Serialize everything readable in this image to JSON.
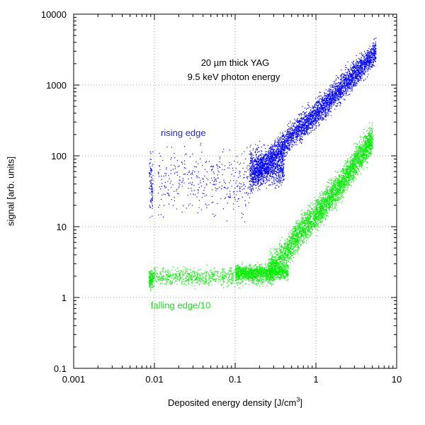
{
  "chart_data": {
    "type": "scatter",
    "title_lines": [
      "20 µm thick YAG",
      "9.5 keV photon energy"
    ],
    "xlabel": "Deposited energy density [J/cm",
    "xlabel_sup": "3",
    "xlabel_end": "]",
    "ylabel": "signal [arb. units]",
    "x_scale": "log",
    "y_scale": "log",
    "xlim": [
      0.001,
      10
    ],
    "ylim": [
      0.1,
      10000
    ],
    "x_ticks": [
      {
        "value": 0.001,
        "label": "0.001"
      },
      {
        "value": 0.01,
        "label": "0.01"
      },
      {
        "value": 0.1,
        "label": "0.1"
      },
      {
        "value": 1,
        "label": "1"
      },
      {
        "value": 10,
        "label": "10"
      }
    ],
    "y_ticks": [
      {
        "value": 0.1,
        "label": "0.1"
      },
      {
        "value": 1,
        "label": "1"
      },
      {
        "value": 10,
        "label": "10"
      },
      {
        "value": 100,
        "label": "100"
      },
      {
        "value": 1000,
        "label": "1000"
      },
      {
        "value": 10000,
        "label": "10000"
      }
    ],
    "grid": true,
    "series": [
      {
        "name": "rising edge",
        "color": "#0000ff",
        "label_anchor": {
          "x": 0.012,
          "y": 190
        },
        "clusters": [
          {
            "x_range": [
              0.0085,
              0.0095
            ],
            "y_center": 40,
            "y_spread_decades": 0.4,
            "count": 90
          },
          {
            "x_range": [
              0.011,
              0.15
            ],
            "y_center": 45,
            "y_spread_decades": 0.45,
            "count": 380
          },
          {
            "x_range": [
              0.15,
              0.4
            ],
            "y_center": 70,
            "y_spread_decades": 0.25,
            "count": 900
          }
        ],
        "trend": [
          {
            "x": 0.15,
            "y": 45
          },
          {
            "x": 0.3,
            "y": 100
          },
          {
            "x": 0.5,
            "y": 200
          },
          {
            "x": 1.0,
            "y": 400
          },
          {
            "x": 2.0,
            "y": 900
          },
          {
            "x": 4.0,
            "y": 2000
          },
          {
            "x": 5.5,
            "y": 3000
          }
        ],
        "trend_spread_decades": 0.18,
        "trend_count": 3800
      },
      {
        "name": "falling edge/10",
        "color": "#00ee00",
        "label_anchor": {
          "x": 0.009,
          "y": 0.7
        },
        "clusters": [
          {
            "x_range": [
              0.0085,
              0.0095
            ],
            "y_center": 1.8,
            "y_spread_decades": 0.12,
            "count": 140
          },
          {
            "x_range": [
              0.009,
              0.3
            ],
            "y_center": 2.0,
            "y_spread_decades": 0.12,
            "count": 900
          },
          {
            "x_range": [
              0.1,
              0.45
            ],
            "y_center": 2.3,
            "y_spread_decades": 0.1,
            "count": 1200
          }
        ],
        "trend": [
          {
            "x": 0.25,
            "y": 2.5
          },
          {
            "x": 0.4,
            "y": 4
          },
          {
            "x": 0.6,
            "y": 8
          },
          {
            "x": 1.0,
            "y": 15
          },
          {
            "x": 2.0,
            "y": 40
          },
          {
            "x": 3.0,
            "y": 80
          },
          {
            "x": 5.0,
            "y": 180
          }
        ],
        "trend_spread_decades": 0.2,
        "trend_count": 3800
      }
    ]
  }
}
